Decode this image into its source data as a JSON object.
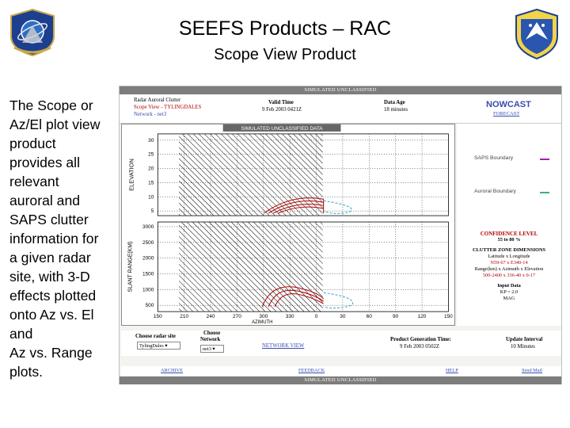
{
  "title": "SEEFS Products – RAC",
  "subtitle": "Scope View Product",
  "description_lines": [
    "The Scope or",
    "Az/El plot view",
    "product",
    "provides all",
    "relevant",
    "auroral and",
    "SAPS clutter",
    "information for",
    "a given radar",
    "site, with 3-D",
    "effects plotted",
    "onto Az vs. El",
    "and",
    "Az vs. Range",
    "plots."
  ],
  "screenshot": {
    "banner_top": "SIMULATED UNCLASSIFIED",
    "banner_bottom": "SIMULATED UNCLASSIFIED",
    "header": {
      "product_name": "Radar Auroral Clutter",
      "scope_view": "Scope View - TYLINGDALES",
      "network": "Network - net3",
      "valid_time_label": "Valid Time",
      "valid_time": "9 Feb 2003 0421Z",
      "data_age_label": "Data Age",
      "data_age": "18 minutes",
      "nowcast": "NOWCAST",
      "forecast": "FORECAST"
    },
    "plot": {
      "banner": "SIMULATED UNCLASSIFIED DATA",
      "top_ylabel": "ELEVATION",
      "bottom_ylabel": "SLANT RANGE(KM)",
      "xlabel": "AZIMUTH",
      "top_yticks": [
        "30",
        "25",
        "20",
        "15",
        "10",
        "5"
      ],
      "bottom_yticks": [
        "3000",
        "2500",
        "2000",
        "1500",
        "1000",
        "500"
      ],
      "xticks": [
        "150",
        "210",
        "240",
        "270",
        "300",
        "330",
        "0",
        "30",
        "60",
        "90",
        "120",
        "150"
      ]
    },
    "legend": {
      "saps_boundary": "SAPS Boundary",
      "auroral_boundary": "Auroral Boundary",
      "saps_color": "#a020b0",
      "auroral_color": "#3cb371"
    },
    "info": {
      "confidence_label": "CONFIDENCE LEVEL",
      "confidence_value": "55 to 80 %",
      "dims_label": "CLUTTER ZONE DIMENSIONS",
      "dims_sub": "Latitude x Longitude",
      "dims_latlon": "N59-67 x E340-14",
      "dims_range_label": "Range(km) x Azimuth x Elevation",
      "dims_range_values": "500-2400 x 336-40 x 0-17",
      "input_label": "Input Data",
      "kp": "KP = 2.0",
      "mag": "MAG"
    },
    "controls": {
      "radar_site_label": "Choose radar site",
      "radar_site_value": "TylingDales",
      "network_label_1": "Choose",
      "network_label_2": "Network",
      "network_value": "net3",
      "network_view": "NETWORK VIEW",
      "generation_label": "Product Generation Time:",
      "generation_value": "9 Feb 2003 0502Z",
      "update_label": "Update Interval",
      "update_value": "10 Minutes"
    },
    "links": {
      "archive": "ARCHIVE",
      "feedback": "FEEDBACK",
      "help": "HELP",
      "send_mail": "Send Mail"
    }
  }
}
